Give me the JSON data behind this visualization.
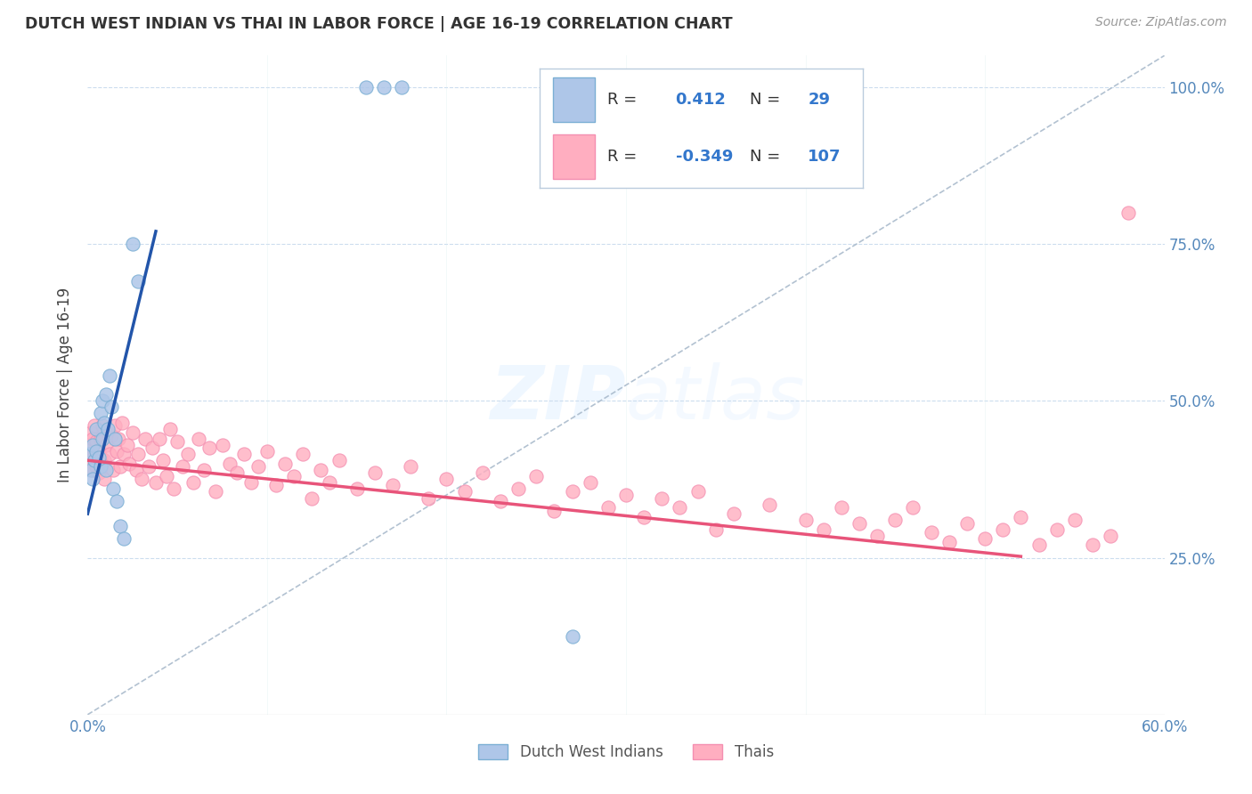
{
  "title": "DUTCH WEST INDIAN VS THAI IN LABOR FORCE | AGE 16-19 CORRELATION CHART",
  "source": "Source: ZipAtlas.com",
  "ylabel": "In Labor Force | Age 16-19",
  "xlim": [
    0.0,
    0.6
  ],
  "ylim": [
    0.0,
    1.05
  ],
  "blue_color": "#7BAFD4",
  "pink_color": "#F48FB1",
  "blue_fill": "#AEC6E8",
  "pink_fill": "#FFAEC0",
  "line_blue": "#2255AA",
  "line_pink": "#E8547A",
  "diagonal_color": "#AABBCC",
  "blue_line_x0": 0.0,
  "blue_line_y0": 0.32,
  "blue_line_x1": 0.038,
  "blue_line_y1": 0.77,
  "pink_line_x0": 0.0,
  "pink_line_y0": 0.405,
  "pink_line_x1": 0.52,
  "pink_line_y1": 0.252,
  "dutch_x": [
    0.001,
    0.002,
    0.003,
    0.003,
    0.004,
    0.005,
    0.005,
    0.006,
    0.007,
    0.007,
    0.008,
    0.008,
    0.009,
    0.01,
    0.01,
    0.011,
    0.012,
    0.013,
    0.014,
    0.015,
    0.016,
    0.018,
    0.02,
    0.025,
    0.028,
    0.155,
    0.165,
    0.175,
    0.27
  ],
  "dutch_y": [
    0.415,
    0.39,
    0.375,
    0.43,
    0.405,
    0.42,
    0.455,
    0.41,
    0.48,
    0.395,
    0.44,
    0.5,
    0.465,
    0.51,
    0.39,
    0.455,
    0.54,
    0.49,
    0.36,
    0.44,
    0.34,
    0.3,
    0.28,
    0.75,
    0.69,
    1.0,
    1.0,
    1.0,
    0.125
  ],
  "thai_x": [
    0.001,
    0.002,
    0.002,
    0.003,
    0.003,
    0.004,
    0.004,
    0.005,
    0.005,
    0.006,
    0.006,
    0.007,
    0.007,
    0.008,
    0.009,
    0.009,
    0.01,
    0.011,
    0.012,
    0.013,
    0.014,
    0.015,
    0.016,
    0.017,
    0.018,
    0.019,
    0.02,
    0.022,
    0.023,
    0.025,
    0.027,
    0.028,
    0.03,
    0.032,
    0.034,
    0.036,
    0.038,
    0.04,
    0.042,
    0.044,
    0.046,
    0.048,
    0.05,
    0.053,
    0.056,
    0.059,
    0.062,
    0.065,
    0.068,
    0.071,
    0.075,
    0.079,
    0.083,
    0.087,
    0.091,
    0.095,
    0.1,
    0.105,
    0.11,
    0.115,
    0.12,
    0.125,
    0.13,
    0.135,
    0.14,
    0.15,
    0.16,
    0.17,
    0.18,
    0.19,
    0.2,
    0.21,
    0.22,
    0.23,
    0.24,
    0.25,
    0.26,
    0.27,
    0.28,
    0.29,
    0.3,
    0.31,
    0.32,
    0.33,
    0.34,
    0.35,
    0.36,
    0.38,
    0.4,
    0.41,
    0.42,
    0.43,
    0.44,
    0.45,
    0.46,
    0.47,
    0.48,
    0.49,
    0.5,
    0.51,
    0.52,
    0.53,
    0.54,
    0.55,
    0.56,
    0.57,
    0.58
  ],
  "thai_y": [
    0.43,
    0.41,
    0.45,
    0.39,
    0.44,
    0.415,
    0.46,
    0.395,
    0.435,
    0.42,
    0.385,
    0.44,
    0.41,
    0.46,
    0.405,
    0.375,
    0.43,
    0.45,
    0.415,
    0.445,
    0.39,
    0.46,
    0.42,
    0.44,
    0.395,
    0.465,
    0.415,
    0.43,
    0.4,
    0.45,
    0.39,
    0.415,
    0.375,
    0.44,
    0.395,
    0.425,
    0.37,
    0.44,
    0.405,
    0.38,
    0.455,
    0.36,
    0.435,
    0.395,
    0.415,
    0.37,
    0.44,
    0.39,
    0.425,
    0.355,
    0.43,
    0.4,
    0.385,
    0.415,
    0.37,
    0.395,
    0.42,
    0.365,
    0.4,
    0.38,
    0.415,
    0.345,
    0.39,
    0.37,
    0.405,
    0.36,
    0.385,
    0.365,
    0.395,
    0.345,
    0.375,
    0.355,
    0.385,
    0.34,
    0.36,
    0.38,
    0.325,
    0.355,
    0.37,
    0.33,
    0.35,
    0.315,
    0.345,
    0.33,
    0.355,
    0.295,
    0.32,
    0.335,
    0.31,
    0.295,
    0.33,
    0.305,
    0.285,
    0.31,
    0.33,
    0.29,
    0.275,
    0.305,
    0.28,
    0.295,
    0.315,
    0.27,
    0.295,
    0.31,
    0.27,
    0.285,
    0.8
  ]
}
